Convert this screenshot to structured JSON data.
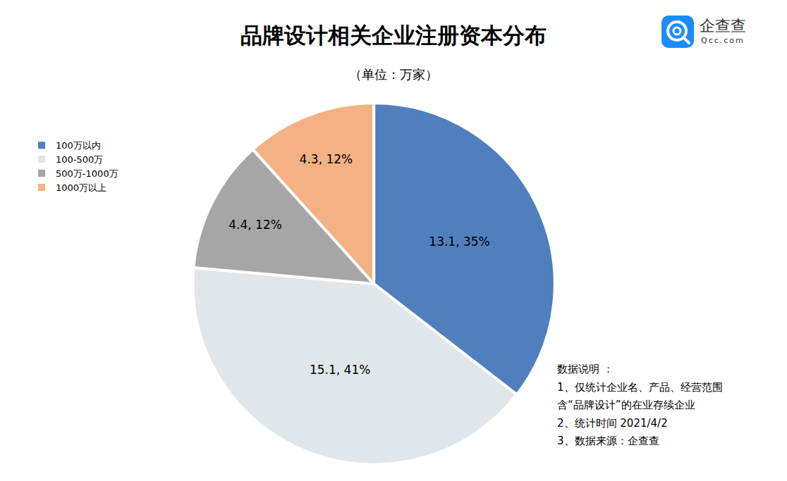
{
  "chart_data": {
    "type": "pie",
    "title": "品牌设计相关企业注册资本分布",
    "subtitle": "（单位：万家）",
    "categories": [
      "100万以内",
      "100-500万",
      "500万-1000万",
      "1000万以上"
    ],
    "values": [
      13.1,
      15.1,
      4.4,
      4.3
    ],
    "value_labels": [
      "13.1, 35%",
      "15.1, 41%",
      "4.4, 12%",
      "4.3, 12%"
    ],
    "colors": [
      "#4f7fbd",
      "#dfe7ea",
      "#a6a6a6",
      "#f4b183"
    ],
    "data_labels": true,
    "legend": "left",
    "notes": [
      "数据说明 ：",
      "1、仅统计企业名、产品、经营范围",
      "含“品牌设计”的在业存续企业",
      "2、统计时间 2021/4/2",
      "3、数据来源：企查查"
    ],
    "logo": {
      "text": "企查查",
      "subtitle": "Qcc.com"
    }
  }
}
